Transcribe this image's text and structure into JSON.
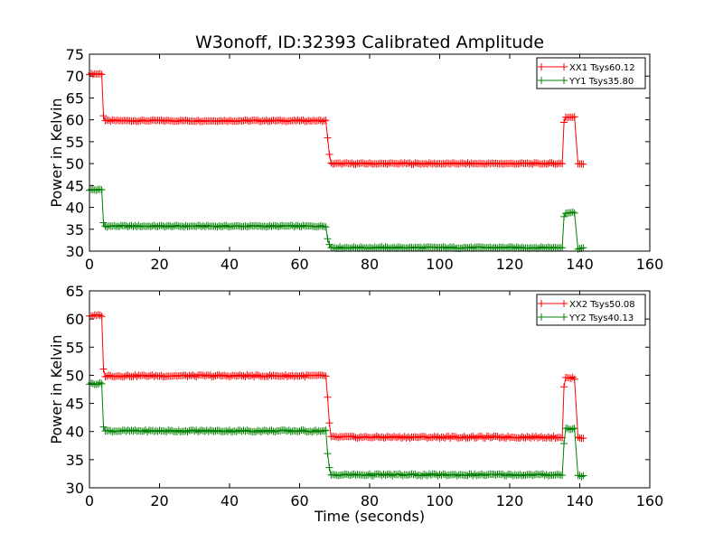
{
  "figure": {
    "title": "W3onoff, ID:32393 Calibrated Amplitude"
  },
  "chart_data": [
    {
      "type": "line",
      "panel": "top",
      "title": "W3onoff, ID:32393 Calibrated Amplitude",
      "xlabel": "",
      "ylabel": "Power in Kelvin",
      "xlim": [
        0,
        160
      ],
      "ylim": [
        30,
        75
      ],
      "xticks": [
        0,
        20,
        40,
        60,
        80,
        100,
        120,
        140,
        160
      ],
      "yticks": [
        30,
        35,
        40,
        45,
        50,
        55,
        60,
        65,
        70,
        75
      ],
      "legend_position": "top-right",
      "grid": false,
      "series": [
        {
          "name": "XX1 Tsys60.12",
          "color": "#ff0000",
          "marker": "plus",
          "segments": [
            {
              "x_start": 0,
              "x_end": 3.5,
              "y": 70.5
            },
            {
              "x_start": 4.0,
              "x_end": 4.0,
              "y": 61.0
            },
            {
              "x_start": 4.5,
              "x_end": 67.5,
              "y": 59.8
            },
            {
              "x_start": 68.0,
              "x_end": 68.0,
              "y": 56.0
            },
            {
              "x_start": 68.5,
              "x_end": 68.5,
              "y": 52.0
            },
            {
              "x_start": 69.0,
              "x_end": 135.0,
              "y": 50.0
            },
            {
              "x_start": 135.5,
              "x_end": 135.5,
              "y": 59.5
            },
            {
              "x_start": 136.0,
              "x_end": 138.5,
              "y": 60.6
            },
            {
              "x_start": 139.5,
              "x_end": 141.0,
              "y": 50.0
            }
          ]
        },
        {
          "name": "YY1 Tsys35.80",
          "color": "#008000",
          "marker": "plus",
          "segments": [
            {
              "x_start": 0,
              "x_end": 3.5,
              "y": 44.0
            },
            {
              "x_start": 4.0,
              "x_end": 4.0,
              "y": 36.5
            },
            {
              "x_start": 4.5,
              "x_end": 67.5,
              "y": 35.7
            },
            {
              "x_start": 68.0,
              "x_end": 68.0,
              "y": 33.0
            },
            {
              "x_start": 68.5,
              "x_end": 68.5,
              "y": 31.5
            },
            {
              "x_start": 69.0,
              "x_end": 135.0,
              "y": 30.8
            },
            {
              "x_start": 135.5,
              "x_end": 135.5,
              "y": 38.0
            },
            {
              "x_start": 136.0,
              "x_end": 138.5,
              "y": 38.8
            },
            {
              "x_start": 139.5,
              "x_end": 141.0,
              "y": 30.6
            }
          ]
        }
      ]
    },
    {
      "type": "line",
      "panel": "bottom",
      "title": "",
      "xlabel": "Time (seconds)",
      "ylabel": "Power in Kelvin",
      "xlim": [
        0,
        160
      ],
      "ylim": [
        30,
        65
      ],
      "xticks": [
        0,
        20,
        40,
        60,
        80,
        100,
        120,
        140,
        160
      ],
      "yticks": [
        30,
        35,
        40,
        45,
        50,
        55,
        60,
        65
      ],
      "legend_position": "top-right",
      "grid": false,
      "series": [
        {
          "name": "XX2 Tsys50.08",
          "color": "#ff0000",
          "marker": "plus",
          "segments": [
            {
              "x_start": 0,
              "x_end": 3.5,
              "y": 60.6
            },
            {
              "x_start": 4.0,
              "x_end": 4.0,
              "y": 51.0
            },
            {
              "x_start": 4.5,
              "x_end": 67.5,
              "y": 49.9
            },
            {
              "x_start": 68.0,
              "x_end": 68.0,
              "y": 46.0
            },
            {
              "x_start": 68.5,
              "x_end": 68.5,
              "y": 41.5
            },
            {
              "x_start": 69.0,
              "x_end": 135.0,
              "y": 39.0
            },
            {
              "x_start": 135.5,
              "x_end": 135.5,
              "y": 48.0
            },
            {
              "x_start": 136.0,
              "x_end": 138.5,
              "y": 49.5
            },
            {
              "x_start": 139.5,
              "x_end": 141.0,
              "y": 38.9
            }
          ]
        },
        {
          "name": "YY2 Tsys40.13",
          "color": "#008000",
          "marker": "plus",
          "segments": [
            {
              "x_start": 0,
              "x_end": 3.5,
              "y": 48.5
            },
            {
              "x_start": 4.0,
              "x_end": 4.0,
              "y": 41.0
            },
            {
              "x_start": 4.5,
              "x_end": 67.5,
              "y": 40.1
            },
            {
              "x_start": 68.0,
              "x_end": 68.0,
              "y": 36.0
            },
            {
              "x_start": 68.5,
              "x_end": 68.5,
              "y": 33.5
            },
            {
              "x_start": 69.0,
              "x_end": 135.0,
              "y": 32.3
            },
            {
              "x_start": 135.5,
              "x_end": 135.5,
              "y": 38.0
            },
            {
              "x_start": 136.0,
              "x_end": 138.5,
              "y": 40.5
            },
            {
              "x_start": 139.5,
              "x_end": 141.0,
              "y": 32.1
            }
          ]
        }
      ]
    }
  ]
}
